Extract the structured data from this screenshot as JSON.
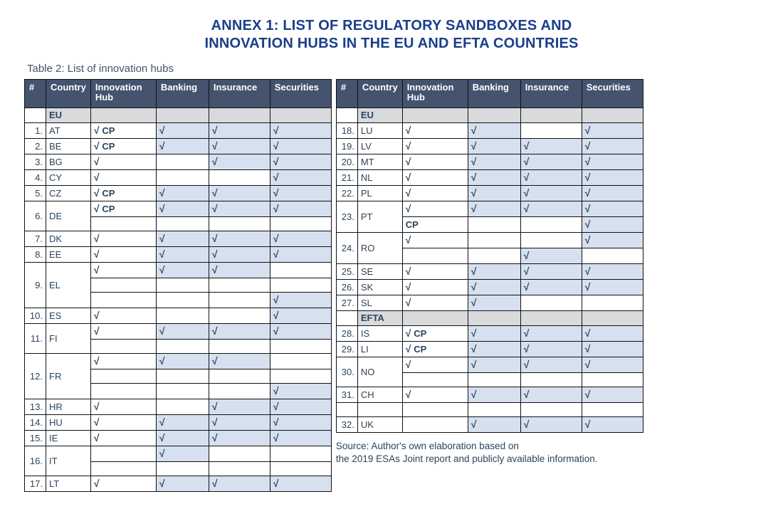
{
  "title_line1": "ANNEX 1: LIST OF REGULATORY SANDBOXES AND",
  "title_line2": "INNOVATION HUBS IN THE EU AND EFTA COUNTRIES",
  "caption": "Table 2: List of innovation hubs",
  "columns": [
    "#",
    "Country",
    "Innovation Hub",
    "Banking",
    "Insurance",
    "Securities"
  ],
  "section_eu": "EU",
  "section_efta": "EFTA",
  "check_glyph": "√",
  "cp_label": "CP",
  "colors": {
    "accent": "#1a3e8b",
    "header_bg": "#44536e",
    "header_fg": "#ffffff",
    "shade_bg": "#d6e0ef",
    "section_bg": "#d9dadc",
    "border": "#111111",
    "text": "#2b445e",
    "page_bg": "#ffffff"
  },
  "left_rows": [
    {
      "type": "section",
      "label": "EU"
    },
    {
      "n": "1.",
      "cty": "AT",
      "hub": "√ CP",
      "bank": "√",
      "ins": "√",
      "sec": "√",
      "sb": true,
      "si": true,
      "ss": true
    },
    {
      "n": "2.",
      "cty": "BE",
      "hub": "√ CP",
      "bank": "√",
      "ins": "√",
      "sec": "√",
      "sb": true,
      "si": true,
      "ss": true
    },
    {
      "n": "3.",
      "cty": "BG",
      "hub": "√",
      "bank": "",
      "ins": "√",
      "sec": "√",
      "si": true,
      "ss": true
    },
    {
      "n": "4.",
      "cty": "CY",
      "hub": "√",
      "bank": "",
      "ins": "",
      "sec": "√",
      "ss": true
    },
    {
      "n": "5.",
      "cty": "CZ",
      "hub": "√ CP",
      "bank": "√",
      "ins": "√",
      "sec": "√",
      "sb": true,
      "si": true,
      "ss": true
    },
    {
      "n": "6.",
      "cty": "DE",
      "rs": 2,
      "hub": "√ CP",
      "bank": "√",
      "ins": "√",
      "sec": "√",
      "sb": true,
      "si": true,
      "ss": true
    },
    {
      "sub": true,
      "hub": "",
      "bank": "",
      "ins": "",
      "sec": ""
    },
    {
      "n": "7.",
      "cty": "DK",
      "hub": "√",
      "bank": "√",
      "ins": "√",
      "sec": "√",
      "sb": true,
      "si": true,
      "ss": true
    },
    {
      "n": "8.",
      "cty": "EE",
      "hub": "√",
      "bank": "√",
      "ins": "√",
      "sec": "√",
      "sb": true,
      "si": true,
      "ss": true
    },
    {
      "n": "9.",
      "cty": "EL",
      "rs": 3,
      "hub": "√",
      "bank": "√",
      "ins": "√",
      "sec": "",
      "sb": true,
      "si": true
    },
    {
      "sub": true,
      "hub": "",
      "bank": "",
      "ins": "",
      "sec": ""
    },
    {
      "sub": true,
      "hub": "",
      "bank": "",
      "ins": "",
      "sec": "√",
      "ss": true
    },
    {
      "n": "10.",
      "cty": "ES",
      "hub": "√",
      "bank": "",
      "ins": "",
      "sec": "√",
      "ss": true
    },
    {
      "n": "11.",
      "cty": "FI",
      "rs": 2,
      "hub": "√",
      "bank": "√",
      "ins": "√",
      "sec": "√",
      "sb": true,
      "si": true,
      "ss": true
    },
    {
      "sub": true,
      "hub": "",
      "bank": "",
      "ins": "",
      "sec": ""
    },
    {
      "n": "12.",
      "cty": "FR",
      "rs": 3,
      "hub": "√",
      "bank": "√",
      "ins": "√",
      "sec": "",
      "sb": true,
      "si": true
    },
    {
      "sub": true,
      "hub": "",
      "bank": "",
      "ins": "",
      "sec": ""
    },
    {
      "sub": true,
      "hub": "",
      "bank": "",
      "ins": "",
      "sec": "√",
      "ss": true
    },
    {
      "n": "13.",
      "cty": "HR",
      "hub": "√",
      "bank": "",
      "ins": "√",
      "sec": "√",
      "si": true,
      "ss": true
    },
    {
      "n": "14.",
      "cty": "HU",
      "hub": "√",
      "bank": "√",
      "ins": "√",
      "sec": "√",
      "sb": true,
      "si": true,
      "ss": true
    },
    {
      "n": "15.",
      "cty": "IE",
      "hub": "√",
      "bank": "√",
      "ins": "√",
      "sec": "√",
      "sb": true,
      "si": true,
      "ss": true
    },
    {
      "n": "16.",
      "cty": "IT",
      "rs": 2,
      "hub": "",
      "bank": "√",
      "ins": "",
      "sec": "",
      "sb": true
    },
    {
      "sub": true,
      "hub": "",
      "bank": "",
      "ins": "",
      "sec": ""
    },
    {
      "n": "17.",
      "cty": "LT",
      "hub": "√",
      "bank": "√",
      "ins": "√",
      "sec": "√",
      "sb": true,
      "si": true,
      "ss": true
    }
  ],
  "right_rows": [
    {
      "type": "section",
      "label": "EU"
    },
    {
      "n": "18.",
      "cty": "LU",
      "hub": "√",
      "bank": "√",
      "ins": "",
      "sec": "√",
      "sb": true,
      "ss": true
    },
    {
      "n": "19.",
      "cty": "LV",
      "hub": "√",
      "bank": "√",
      "ins": "√",
      "sec": "√",
      "sb": true,
      "si": true,
      "ss": true
    },
    {
      "n": "20.",
      "cty": "MT",
      "hub": "√",
      "bank": "√",
      "ins": "√",
      "sec": "√",
      "sb": true,
      "si": true,
      "ss": true
    },
    {
      "n": "21.",
      "cty": "NL",
      "hub": "√",
      "bank": "√",
      "ins": "√",
      "sec": "√",
      "sb": true,
      "si": true,
      "ss": true
    },
    {
      "n": "22.",
      "cty": "PL",
      "hub": "√",
      "bank": "√",
      "ins": "√",
      "sec": "√",
      "sb": true,
      "si": true,
      "ss": true
    },
    {
      "n": "23.",
      "cty": "PT",
      "rs": 2,
      "hub": "√",
      "bank": "√",
      "ins": "√",
      "sec": "√",
      "sb": true,
      "si": true,
      "ss": true
    },
    {
      "sub": true,
      "hub": "CP",
      "hubcp": true,
      "bank": "",
      "ins": "",
      "sec": "√",
      "ss": true
    },
    {
      "n": "24.",
      "cty": "RO",
      "rs": 2,
      "hub": "√",
      "bank": "",
      "ins": "",
      "sec": "√",
      "ss": true
    },
    {
      "sub": true,
      "hub": "",
      "bank": "",
      "ins": "√",
      "sec": "",
      "si": true
    },
    {
      "n": "25.",
      "cty": "SE",
      "hub": "√",
      "bank": "√",
      "ins": "√",
      "sec": "√",
      "sb": true,
      "si": true,
      "ss": true
    },
    {
      "n": "26.",
      "cty": "SK",
      "hub": "√",
      "bank": "√",
      "ins": "√",
      "sec": "√",
      "sb": true,
      "si": true,
      "ss": true
    },
    {
      "n": "27.",
      "cty": "SL",
      "hub": "√",
      "bank": "√",
      "ins": "",
      "sec": "",
      "sb": true
    },
    {
      "type": "section",
      "label": "EFTA"
    },
    {
      "n": "28.",
      "cty": "IS",
      "hub": "√ CP",
      "bank": "√",
      "ins": "√",
      "sec": "√",
      "sb": true,
      "si": true,
      "ss": true
    },
    {
      "n": "29.",
      "cty": "LI",
      "hub": "√ CP",
      "bank": "√",
      "ins": "√",
      "sec": "√",
      "sb": true,
      "si": true,
      "ss": true
    },
    {
      "n": "30.",
      "cty": "NO",
      "rs": 2,
      "hub": "√",
      "bank": "√",
      "ins": "√",
      "sec": "√",
      "sb": true,
      "si": true,
      "ss": true
    },
    {
      "sub": true,
      "hub": "",
      "bank": "",
      "ins": "",
      "sec": ""
    },
    {
      "n": "31.",
      "cty": "CH",
      "hub": "√",
      "bank": "√",
      "ins": "√",
      "sec": "√",
      "sb": true,
      "si": true,
      "ss": true
    },
    {
      "type": "blank"
    },
    {
      "n": "32.",
      "cty": "UK",
      "hub": "",
      "bank": "√",
      "ins": "√",
      "sec": "√",
      "sb": true,
      "si": true,
      "ss": true
    }
  ],
  "source_line1": "Source: Author's own elaboration based on",
  "source_line2": "the 2019 ESAs Joint report and publicly available information."
}
